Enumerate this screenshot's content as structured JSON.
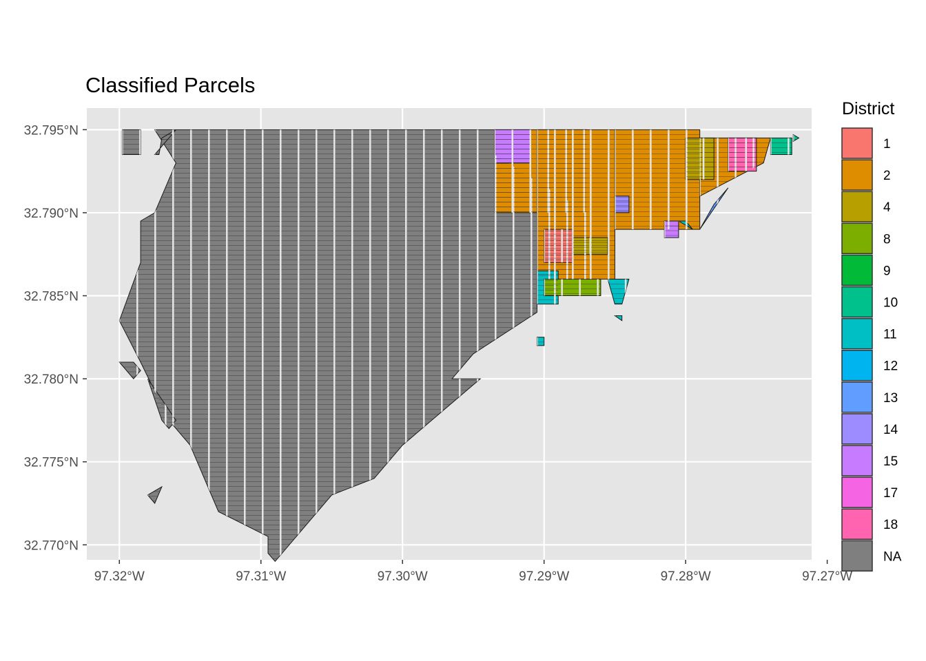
{
  "title": "Classified Parcels",
  "legend": {
    "title": "District",
    "items": [
      {
        "label": "1",
        "color": "#F8766D"
      },
      {
        "label": "2",
        "color": "#DE8C00"
      },
      {
        "label": "4",
        "color": "#B79F00"
      },
      {
        "label": "8",
        "color": "#7CAE00"
      },
      {
        "label": "9",
        "color": "#00BA38"
      },
      {
        "label": "10",
        "color": "#00C08B"
      },
      {
        "label": "11",
        "color": "#00BFC4"
      },
      {
        "label": "12",
        "color": "#00B4F0"
      },
      {
        "label": "13",
        "color": "#619CFF"
      },
      {
        "label": "14",
        "color": "#9D8CFF"
      },
      {
        "label": "15",
        "color": "#C77CFF"
      },
      {
        "label": "17",
        "color": "#F564E3"
      },
      {
        "label": "18",
        "color": "#FF64B0"
      },
      {
        "label": "NA",
        "color": "#7F7F7F"
      }
    ]
  },
  "chart_data": {
    "type": "map",
    "title": "Classified Parcels",
    "panel_background": "#E5E5E5",
    "grid": true,
    "legend_position": "right",
    "x_ticks": [
      {
        "value": -97.32,
        "label": "97.32°W"
      },
      {
        "value": -97.31,
        "label": "97.31°W"
      },
      {
        "value": -97.3,
        "label": "97.30°W"
      },
      {
        "value": -97.29,
        "label": "97.29°W"
      },
      {
        "value": -97.28,
        "label": "97.28°W"
      },
      {
        "value": -97.27,
        "label": "97.27°W"
      }
    ],
    "y_ticks": [
      {
        "value": 32.795,
        "label": "32.795°N"
      },
      {
        "value": 32.79,
        "label": "32.790°N"
      },
      {
        "value": 32.785,
        "label": "32.785°N"
      },
      {
        "value": 32.78,
        "label": "32.780°N"
      },
      {
        "value": 32.775,
        "label": "32.775°N"
      },
      {
        "value": 32.77,
        "label": "32.770°N"
      }
    ],
    "xlim": [
      -97.3223,
      -97.2711
    ],
    "ylim": [
      32.7691,
      32.7963
    ],
    "parcel_areas": [
      {
        "district": "NA",
        "polygon": [
          [
            -97.3175,
            32.795
          ],
          [
            -97.2935,
            32.795
          ],
          [
            -97.2935,
            32.7935
          ],
          [
            -97.287,
            32.79
          ],
          [
            -97.287,
            32.786
          ],
          [
            -97.2905,
            32.786
          ],
          [
            -97.2905,
            32.784
          ],
          [
            -97.295,
            32.7815
          ],
          [
            -97.2965,
            32.78
          ],
          [
            -97.2945,
            32.78
          ],
          [
            -97.3,
            32.776
          ],
          [
            -97.302,
            32.774
          ],
          [
            -97.305,
            32.773
          ],
          [
            -97.309,
            32.769
          ],
          [
            -97.3095,
            32.7695
          ],
          [
            -97.3095,
            32.7705
          ],
          [
            -97.313,
            32.772
          ],
          [
            -97.314,
            32.774
          ],
          [
            -97.315,
            32.776
          ],
          [
            -97.3165,
            32.7775
          ],
          [
            -97.3185,
            32.781
          ],
          [
            -97.32,
            32.7835
          ],
          [
            -97.3185,
            32.787
          ],
          [
            -97.3185,
            32.7895
          ],
          [
            -97.3175,
            32.79
          ],
          [
            -97.316,
            32.793
          ],
          [
            -97.3175,
            32.795
          ]
        ]
      },
      {
        "district": "NA",
        "polygon": [
          [
            -97.3198,
            32.795
          ],
          [
            -97.3185,
            32.795
          ],
          [
            -97.3185,
            32.7935
          ],
          [
            -97.3192,
            32.7935
          ],
          [
            -97.3193,
            32.7935
          ],
          [
            -97.3198,
            32.7935
          ]
        ]
      },
      {
        "district": "NA",
        "polygon": [
          [
            -97.32,
            32.781
          ],
          [
            -97.319,
            32.78
          ],
          [
            -97.3185,
            32.7805
          ],
          [
            -97.319,
            32.781
          ]
        ]
      },
      {
        "district": "NA",
        "polygon": [
          [
            -97.318,
            32.78
          ],
          [
            -97.317,
            32.7775
          ],
          [
            -97.3165,
            32.777
          ],
          [
            -97.316,
            32.7775
          ]
        ]
      },
      {
        "district": "NA",
        "polygon": [
          [
            -97.318,
            32.773
          ],
          [
            -97.3175,
            32.7725
          ],
          [
            -97.317,
            32.7735
          ]
        ]
      },
      {
        "district": "NA",
        "polygon": [
          [
            -97.317,
            32.7945
          ],
          [
            -97.316,
            32.795
          ],
          [
            -97.3175,
            32.7935
          ],
          [
            -97.3172,
            32.7935
          ]
        ]
      },
      {
        "district": "2",
        "polygon": [
          [
            -97.2935,
            32.795
          ],
          [
            -97.287,
            32.795
          ],
          [
            -97.287,
            32.79
          ],
          [
            -97.2935,
            32.79
          ]
        ]
      },
      {
        "district": "15",
        "polygon": [
          [
            -97.2935,
            32.795
          ],
          [
            -97.291,
            32.795
          ],
          [
            -97.291,
            32.793
          ],
          [
            -97.2935,
            32.793
          ]
        ]
      },
      {
        "district": "2",
        "polygon": [
          [
            -97.2905,
            32.795
          ],
          [
            -97.285,
            32.795
          ],
          [
            -97.285,
            32.786
          ],
          [
            -97.2905,
            32.786
          ]
        ]
      },
      {
        "district": "1",
        "polygon": [
          [
            -97.29,
            32.789
          ],
          [
            -97.288,
            32.789
          ],
          [
            -97.288,
            32.787
          ],
          [
            -97.29,
            32.787
          ]
        ]
      },
      {
        "district": "4",
        "polygon": [
          [
            -97.288,
            32.7885
          ],
          [
            -97.2855,
            32.7885
          ],
          [
            -97.2855,
            32.7875
          ],
          [
            -97.288,
            32.7875
          ]
        ]
      },
      {
        "district": "2",
        "polygon": [
          [
            -97.285,
            32.795
          ],
          [
            -97.279,
            32.795
          ],
          [
            -97.279,
            32.789
          ],
          [
            -97.285,
            32.789
          ]
        ]
      },
      {
        "district": "2",
        "polygon": [
          [
            -97.279,
            32.7945
          ],
          [
            -97.274,
            32.7945
          ],
          [
            -97.2745,
            32.793
          ],
          [
            -97.279,
            32.791
          ]
        ]
      },
      {
        "district": "4",
        "polygon": [
          [
            -97.28,
            32.7945
          ],
          [
            -97.278,
            32.7945
          ],
          [
            -97.278,
            32.792
          ],
          [
            -97.28,
            32.792
          ]
        ]
      },
      {
        "district": "18",
        "polygon": [
          [
            -97.277,
            32.7945
          ],
          [
            -97.275,
            32.7945
          ],
          [
            -97.275,
            32.7925
          ],
          [
            -97.277,
            32.7925
          ]
        ]
      },
      {
        "district": "10",
        "polygon": [
          [
            -97.274,
            32.7945
          ],
          [
            -97.2725,
            32.7945
          ],
          [
            -97.2725,
            32.7935
          ],
          [
            -97.274,
            32.7935
          ]
        ]
      },
      {
        "district": "13",
        "polygon": [
          [
            -97.279,
            32.789
          ],
          [
            -97.278,
            32.7905
          ],
          [
            -97.277,
            32.7915
          ]
        ]
      },
      {
        "district": "11",
        "polygon": [
          [
            -97.2905,
            32.7865
          ],
          [
            -97.289,
            32.7865
          ],
          [
            -97.289,
            32.7845
          ],
          [
            -97.2905,
            32.7845
          ]
        ]
      },
      {
        "district": "8",
        "polygon": [
          [
            -97.29,
            32.786
          ],
          [
            -97.286,
            32.786
          ],
          [
            -97.286,
            32.785
          ],
          [
            -97.29,
            32.785
          ]
        ]
      },
      {
        "district": "11",
        "polygon": [
          [
            -97.2855,
            32.786
          ],
          [
            -97.284,
            32.786
          ],
          [
            -97.2845,
            32.7845
          ],
          [
            -97.285,
            32.7845
          ]
        ]
      },
      {
        "district": "14",
        "polygon": [
          [
            -97.285,
            32.791
          ],
          [
            -97.284,
            32.791
          ],
          [
            -97.284,
            32.79
          ],
          [
            -97.285,
            32.79
          ]
        ]
      },
      {
        "district": "15",
        "polygon": [
          [
            -97.2815,
            32.7895
          ],
          [
            -97.2805,
            32.7895
          ],
          [
            -97.2805,
            32.7885
          ],
          [
            -97.2815,
            32.7885
          ]
        ]
      },
      {
        "district": "11",
        "polygon": [
          [
            -97.2805,
            32.7895
          ],
          [
            -97.28,
            32.7895
          ],
          [
            -97.2795,
            32.789
          ]
        ]
      },
      {
        "district": "11",
        "polygon": [
          [
            -97.2905,
            32.7825
          ],
          [
            -97.29,
            32.7825
          ],
          [
            -97.29,
            32.782
          ],
          [
            -97.2905,
            32.782
          ]
        ]
      },
      {
        "district": "11",
        "polygon": [
          [
            -97.285,
            32.7838
          ],
          [
            -97.2845,
            32.7838
          ],
          [
            -97.2845,
            32.7835
          ]
        ]
      },
      {
        "district": "10",
        "polygon": [
          [
            -97.2724,
            32.7947
          ],
          [
            -97.272,
            32.7945
          ],
          [
            -97.2724,
            32.7943
          ]
        ]
      }
    ]
  }
}
